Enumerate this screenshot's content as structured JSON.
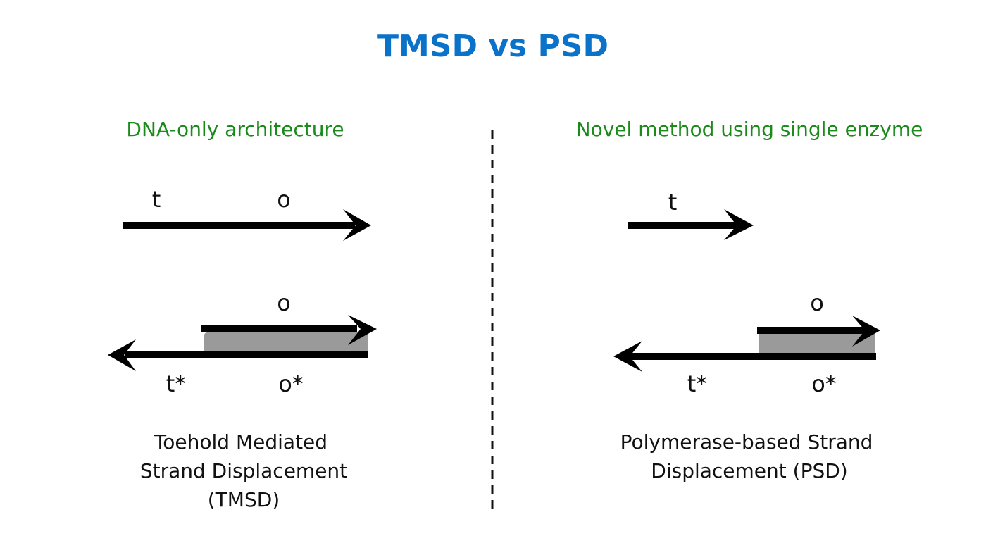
{
  "title": "TMSD vs PSD",
  "colors": {
    "title": "#0a72c8",
    "subtitle": "#1a8a1a",
    "duplex": "#9a9a9a",
    "strand": "#000000"
  },
  "left": {
    "subtitle": "DNA-only architecture",
    "labels": {
      "t": "t",
      "o_top": "o",
      "o_bound": "o",
      "t_star": "t*",
      "o_star": "o*"
    },
    "caption": [
      "Toehold Mediated",
      "Strand Displacement",
      "(TMSD)"
    ]
  },
  "right": {
    "subtitle": "Novel method using single enzyme",
    "labels": {
      "t": "t",
      "o_bound": "o",
      "t_star": "t*",
      "o_star": "o*"
    },
    "caption": [
      "Polymerase-based Strand",
      "Displacement (PSD)"
    ]
  }
}
